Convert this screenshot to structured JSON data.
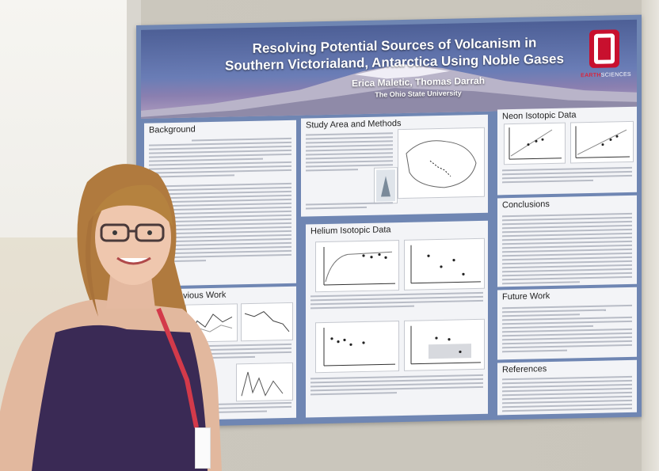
{
  "poster": {
    "title_line1": "Resolving Potential Sources of Volcanism in",
    "title_line2": "Southern Victorialand, Antarctica Using Noble Gases",
    "authors": "Erica Maletic, Thomas Darrah",
    "university": "The Ohio State University",
    "logo_text_prefix": "EARTH",
    "logo_text_suffix": "SCIENCES",
    "sections": {
      "background": "Background",
      "study_area": "Study Area and Methods",
      "neon": "Neon Isotopic Data",
      "helium": "Helium Isotopic Data",
      "conclusions": "Conclusions",
      "previous_work": "Previous Work",
      "future_work": "Future Work",
      "references": "References"
    }
  },
  "colors": {
    "poster_frame": "#6f86b3",
    "banner_top": "#4d5f96",
    "logo_red": "#c8102e",
    "shirt": "#3a2a55",
    "hair": "#b07a3e"
  }
}
